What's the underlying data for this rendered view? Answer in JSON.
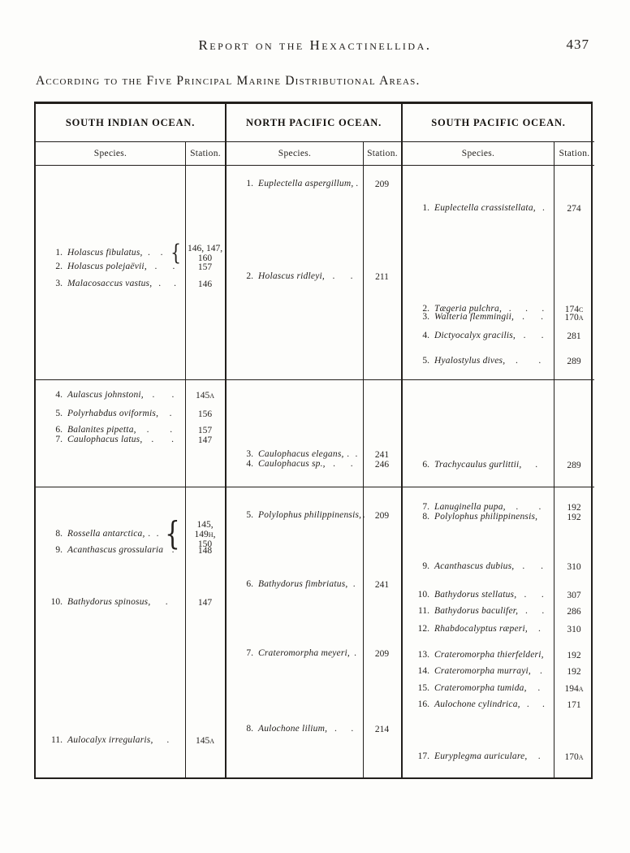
{
  "header": {
    "title": "Report on the Hexactinellida.",
    "page_number": "437",
    "subtitle": "According to the Five Principal Marine Distributional Areas."
  },
  "table": {
    "sections": [
      {
        "id": "south-indian-ocean",
        "title": "SOUTH INDIAN OCEAN.",
        "species_label": "Species.",
        "station_label": "Station.",
        "blocks": [
          [
            {
              "num": "1.",
              "name": "Holascus fibulatus,",
              "dots": 2,
              "brace": true,
              "station": [
                "146, 147,",
                "160"
              ]
            },
            {
              "num": "2.",
              "name": "Holascus polejaëvii,",
              "dots": 2,
              "station": [
                "157"
              ]
            },
            {
              "num": "3.",
              "name": "Malacosaccus vastus,",
              "dots": 2,
              "station": [
                "146"
              ]
            }
          ],
          [
            {
              "num": "4.",
              "name": "Aulascus johnstoni,",
              "dots": 2,
              "station": [
                "145a"
              ]
            },
            {
              "num": "5.",
              "name": "Polyrhabdus oviformis,",
              "dots": 1,
              "station": [
                "156"
              ]
            },
            {
              "num": "6.",
              "name": "Balanites pipetta,",
              "dots": 2,
              "station": [
                "157"
              ]
            },
            {
              "num": "7.",
              "name": "Caulophacus latus,",
              "dots": 2,
              "station": [
                "147"
              ]
            }
          ],
          [
            {
              "num": "8.",
              "name": "Rossella antarctica,",
              "dots": 2,
              "brace": true,
              "station": [
                "145,",
                "149h,",
                "150"
              ]
            },
            {
              "num": "9.",
              "name": "Acanthascus grossularia",
              "dots": 1,
              "station": [
                "148"
              ]
            },
            {
              "num": "10.",
              "name": "Bathydorus spinosus,",
              "dots": 1,
              "station": [
                "147"
              ]
            },
            {
              "num": "11.",
              "name": "Aulocalyx irregularis,",
              "dots": 1,
              "station": [
                "145a"
              ]
            }
          ]
        ]
      },
      {
        "id": "north-pacific-ocean",
        "title": "NORTH PACIFIC OCEAN.",
        "species_label": "Species.",
        "station_label": "Station.",
        "blocks": [
          [
            {
              "num": "1.",
              "name": "Euplectella aspergillum,",
              "dots": 1,
              "station": [
                "209"
              ]
            },
            {
              "num": "2.",
              "name": "Holascus ridleyi,",
              "dots": 2,
              "station": [
                "211"
              ]
            }
          ],
          [
            {
              "num": "3.",
              "name": "Caulophacus elegans,",
              "dots": 2,
              "station": [
                "241"
              ]
            },
            {
              "num": "4.",
              "name": "Caulophacus sp.,",
              "dots": 2,
              "station": [
                "246"
              ]
            }
          ],
          [
            {
              "num": "5.",
              "name": "Polylophus philippinensis,",
              "dots": 1,
              "station": [
                "209"
              ]
            },
            {
              "num": "6.",
              "name": "Bathydorus fimbriatus,",
              "dots": 1,
              "station": [
                "241"
              ]
            },
            {
              "num": "7.",
              "name": "Crateromorpha meyeri,",
              "dots": 1,
              "station": [
                "209"
              ]
            },
            {
              "num": "8.",
              "name": "Aulochone lilium,",
              "dots": 2,
              "station": [
                "214"
              ]
            }
          ]
        ]
      },
      {
        "id": "south-pacific-ocean",
        "title": "SOUTH PACIFIC OCEAN.",
        "species_label": "Species.",
        "station_label": "Station.",
        "blocks": [
          [
            {
              "num": "1.",
              "name": "Euplectella crassistellata,",
              "dots": 1,
              "station": [
                "274"
              ]
            },
            {
              "num": "2.",
              "name": "Tægeria pulchra,",
              "dots": 3,
              "station": [
                "174c"
              ]
            },
            {
              "num": "3.",
              "name": "Walteria flemmingii,",
              "dots": 2,
              "station": [
                "170a"
              ]
            },
            {
              "num": "4.",
              "name": "Dictyocalyx gracilis,",
              "dots": 2,
              "station": [
                "281"
              ]
            },
            {
              "num": "5.",
              "name": "Hyalostylus dives,",
              "dots": 2,
              "station": [
                "289"
              ]
            }
          ],
          [
            {
              "num": "6.",
              "name": "Trachycaulus gurlittii,",
              "dots": 1,
              "station": [
                "289"
              ]
            }
          ],
          [
            {
              "num": "7.",
              "name": "Lanuginella pupa,",
              "dots": 2,
              "station": [
                "192"
              ]
            },
            {
              "num": "8.",
              "name": "Polylophus philippinensis,",
              "dots": 0,
              "station": [
                "192"
              ]
            },
            {
              "num": "9.",
              "name": "Acanthascus dubius,",
              "dots": 2,
              "station": [
                "310"
              ]
            },
            {
              "num": "10.",
              "name": "Bathydorus stellatus,",
              "dots": 2,
              "station": [
                "307"
              ]
            },
            {
              "num": "11.",
              "name": "Bathydorus baculifer,",
              "dots": 2,
              "station": [
                "286"
              ]
            },
            {
              "num": "12.",
              "name": "Rhabdocalyptus ræperi,",
              "dots": 1,
              "station": [
                "310"
              ]
            },
            {
              "num": "13.",
              "name": "Crateromorpha thierfelderi,",
              "dots": 0,
              "station": [
                "192"
              ]
            },
            {
              "num": "14.",
              "name": "Crateromorpha murrayi,",
              "dots": 1,
              "station": [
                "192"
              ]
            },
            {
              "num": "15.",
              "name": "Crateromorpha tumida,",
              "dots": 1,
              "station": [
                "194a"
              ]
            },
            {
              "num": "16.",
              "name": "Aulochone cylindrica,",
              "dots": 2,
              "station": [
                "171"
              ]
            },
            {
              "num": "17.",
              "name": "Euryplegma auriculare,",
              "dots": 1,
              "station": [
                "170a"
              ]
            }
          ]
        ]
      }
    ]
  }
}
